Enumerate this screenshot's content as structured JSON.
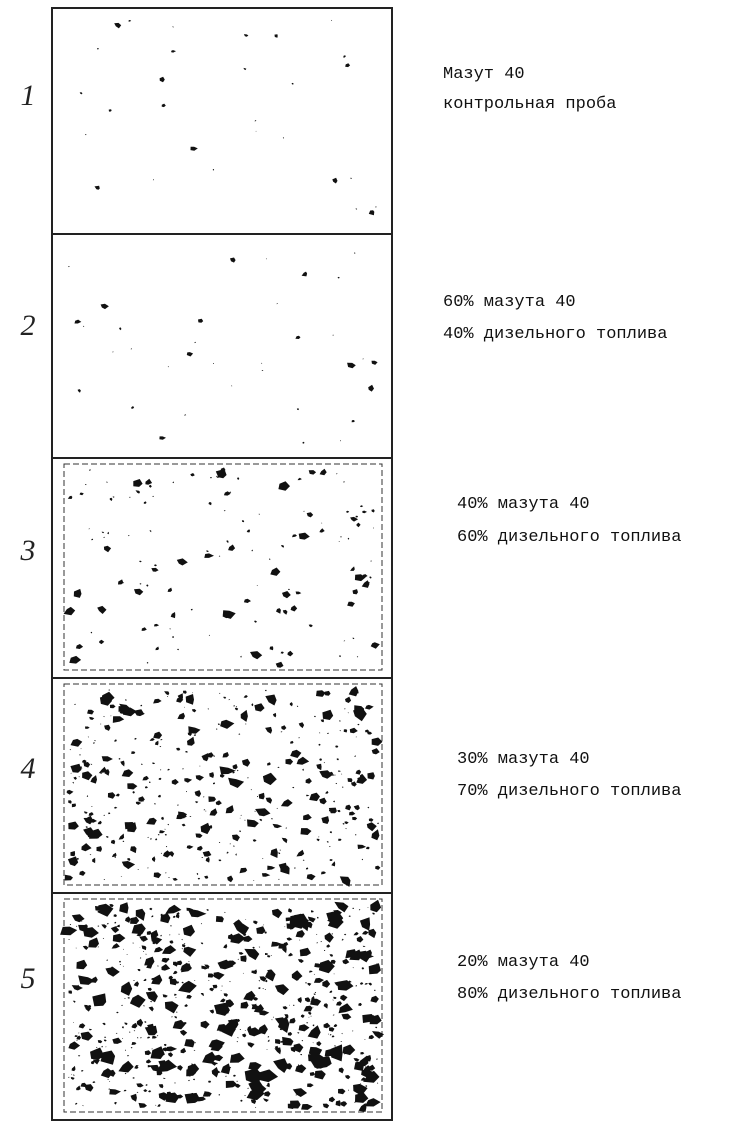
{
  "panels": [
    {
      "number": "1",
      "lines": [
        "Мазут 40",
        "контрольная проба"
      ]
    },
    {
      "number": "2",
      "lines": [
        "60% мазута 40",
        "40% дизельного топлива"
      ]
    },
    {
      "number": "3",
      "lines": [
        "40% мазута 40",
        "60% дизельного топлива"
      ]
    },
    {
      "number": "4",
      "lines": [
        "30% мазута 40",
        "70% дизельного топлива"
      ]
    },
    {
      "number": "5",
      "lines": [
        "20% мазута 40",
        "80% дизельного топлива"
      ]
    }
  ]
}
